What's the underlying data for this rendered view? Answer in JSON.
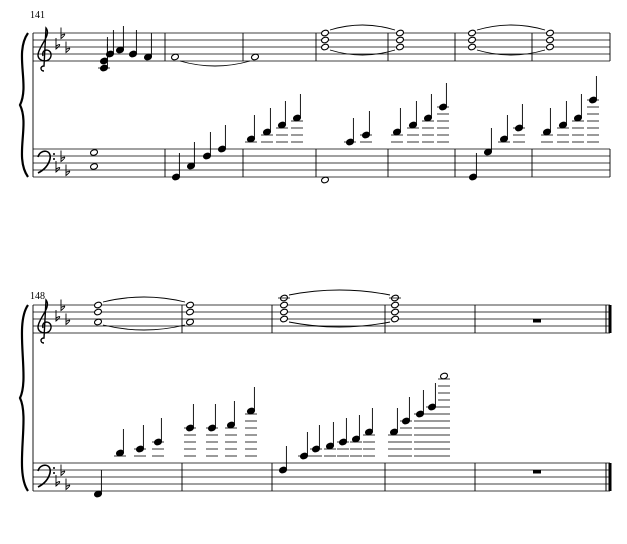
{
  "systems": [
    {
      "measure_number": "141"
    },
    {
      "measure_number": "148"
    }
  ]
}
